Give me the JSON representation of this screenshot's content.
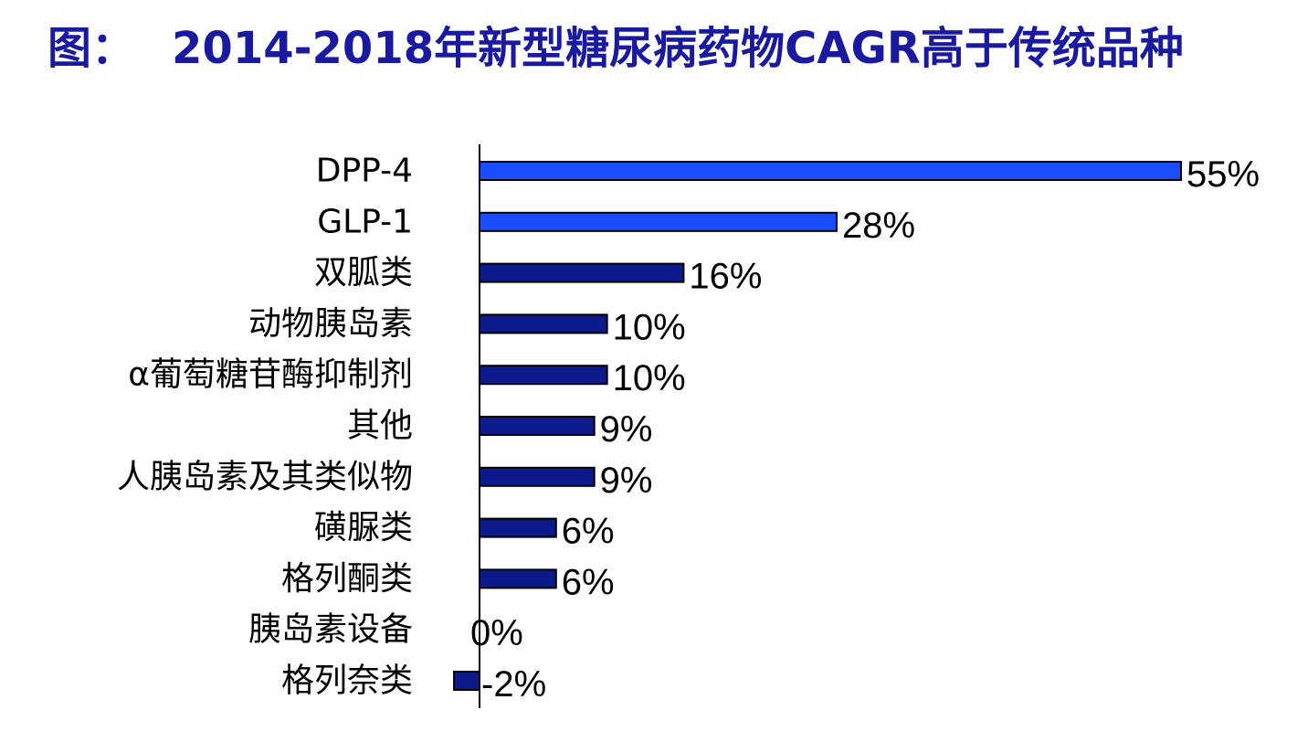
{
  "header": {
    "prefix": "图：",
    "title": "2014-2018年新型糖尿病药物CAGR高于传统品种"
  },
  "colors": {
    "title": "#1a1aa0",
    "highlight_bar": "#1a4dff",
    "normal_bar": "#0c1a8c",
    "axis": "#000000"
  },
  "chart_data": {
    "type": "bar",
    "orientation": "horizontal",
    "title": "2014-2018年新型糖尿病药物CAGR高于传统品种",
    "xlabel": "",
    "ylabel": "",
    "unit": "%",
    "xlim": [
      -2,
      55
    ],
    "grid": false,
    "categories": [
      "DPP-4",
      "GLP-1",
      "双胍类",
      "动物胰岛素",
      "α葡萄糖苷酶抑制剂",
      "其他",
      "人胰岛素及其类似物",
      "磺脲类",
      "格列酮类",
      "胰岛素设备",
      "格列奈类"
    ],
    "values": [
      55,
      28,
      16,
      10,
      10,
      9,
      9,
      6,
      6,
      0,
      -2
    ],
    "value_labels": [
      "55%",
      "28%",
      "16%",
      "10%",
      "10%",
      "9%",
      "9%",
      "6%",
      "6%",
      "0%",
      "-2%"
    ],
    "highlighted": [
      true,
      true,
      false,
      false,
      false,
      false,
      false,
      false,
      false,
      false,
      false
    ]
  }
}
